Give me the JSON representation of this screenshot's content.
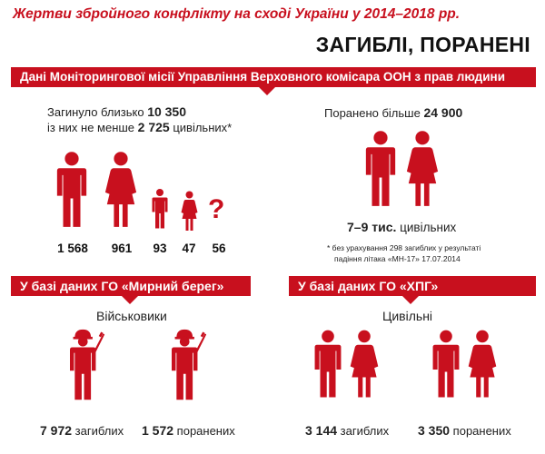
{
  "title": "Жертви збройного конфлікту на сході України у 2014–2018 рр.",
  "heading": "ЗАГИБЛІ, ПОРАНЕНІ",
  "un_section": {
    "title": "Дані Моніторингової місії Управління Верховного комісара ООН з прав людини",
    "killed_line1_prefix": "Загинуло близько",
    "killed_total": "10 350",
    "killed_line2_prefix": "із них не менше",
    "killed_civil": "2 725",
    "killed_line2_suffix": "цивільних*",
    "breakdown": [
      {
        "icon": "man-icon",
        "value": "1 568"
      },
      {
        "icon": "woman-icon",
        "value": "961"
      },
      {
        "icon": "boy-icon",
        "value": "93"
      },
      {
        "icon": "girl-icon",
        "value": "47"
      },
      {
        "icon": "question-icon",
        "symbol": "?",
        "value": "56"
      }
    ],
    "wounded_prefix": "Поранено більше",
    "wounded_total": "24 900",
    "wounded_civil": "7–9 тис.",
    "wounded_civil_suffix": "цивільних",
    "footnote_line1": "* без урахування 298 загиблих у результаті",
    "footnote_line2": "падіння літака «МН-17» 17.07.2014"
  },
  "myrnyi_section": {
    "title": "У базі даних ГО «Мирний берег»",
    "subtitle": "Військовики",
    "killed_value": "7 972",
    "killed_label": "загиблих",
    "wounded_value": "1 572",
    "wounded_label": "поранених"
  },
  "hpg_section": {
    "title": "У базі даних ГО «ХПГ»",
    "subtitle": "Цивільні",
    "killed_value": "3 144",
    "killed_label": "загиблих",
    "wounded_value": "3 350",
    "wounded_label": "поранених"
  },
  "colors": {
    "accent": "#c8101e",
    "text": "#222222"
  }
}
